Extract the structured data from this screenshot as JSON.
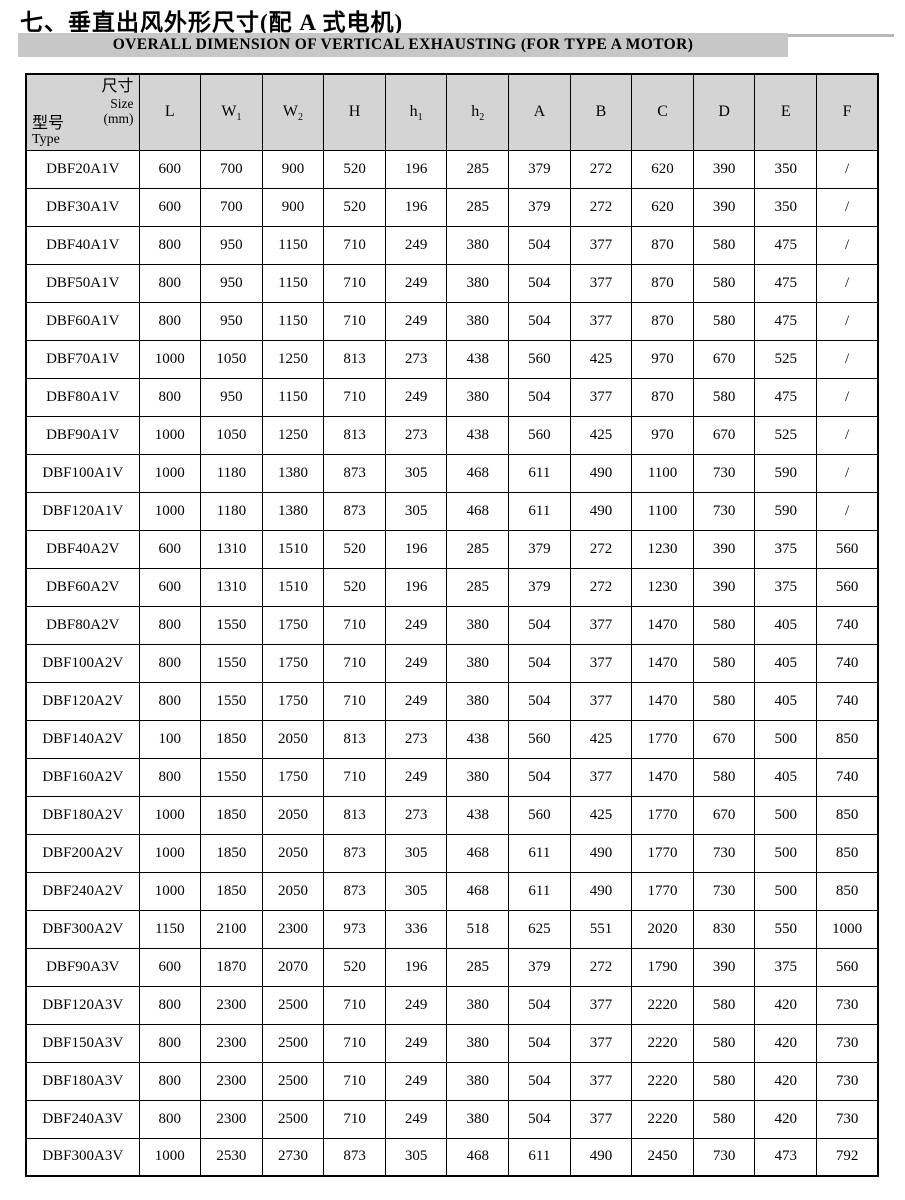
{
  "page": {
    "title": "七、垂直出风外形尺寸(配 A 式电机)",
    "subtitle": "OVERALL DIMENSION OF VERTICAL EXHAUSTING (FOR TYPE A MOTOR)"
  },
  "table": {
    "corner": {
      "size_label": "尺寸",
      "size_en": "Size",
      "size_unit": "(mm)",
      "type_label": "型号",
      "type_en": "Type"
    },
    "columns": [
      {
        "label": "L",
        "sub": ""
      },
      {
        "label": "W",
        "sub": "1"
      },
      {
        "label": "W",
        "sub": "2"
      },
      {
        "label": "H",
        "sub": ""
      },
      {
        "label": "h",
        "sub": "1"
      },
      {
        "label": "h",
        "sub": "2"
      },
      {
        "label": "A",
        "sub": ""
      },
      {
        "label": "B",
        "sub": ""
      },
      {
        "label": "C",
        "sub": ""
      },
      {
        "label": "D",
        "sub": ""
      },
      {
        "label": "E",
        "sub": ""
      },
      {
        "label": "F",
        "sub": ""
      }
    ],
    "rows": [
      {
        "model": "DBF20A1V",
        "values": [
          "600",
          "700",
          "900",
          "520",
          "196",
          "285",
          "379",
          "272",
          "620",
          "390",
          "350",
          "/"
        ]
      },
      {
        "model": "DBF30A1V",
        "values": [
          "600",
          "700",
          "900",
          "520",
          "196",
          "285",
          "379",
          "272",
          "620",
          "390",
          "350",
          "/"
        ]
      },
      {
        "model": "DBF40A1V",
        "values": [
          "800",
          "950",
          "1150",
          "710",
          "249",
          "380",
          "504",
          "377",
          "870",
          "580",
          "475",
          "/"
        ]
      },
      {
        "model": "DBF50A1V",
        "values": [
          "800",
          "950",
          "1150",
          "710",
          "249",
          "380",
          "504",
          "377",
          "870",
          "580",
          "475",
          "/"
        ]
      },
      {
        "model": "DBF60A1V",
        "values": [
          "800",
          "950",
          "1150",
          "710",
          "249",
          "380",
          "504",
          "377",
          "870",
          "580",
          "475",
          "/"
        ]
      },
      {
        "model": "DBF70A1V",
        "values": [
          "1000",
          "1050",
          "1250",
          "813",
          "273",
          "438",
          "560",
          "425",
          "970",
          "670",
          "525",
          "/"
        ]
      },
      {
        "model": "DBF80A1V",
        "values": [
          "800",
          "950",
          "1150",
          "710",
          "249",
          "380",
          "504",
          "377",
          "870",
          "580",
          "475",
          "/"
        ]
      },
      {
        "model": "DBF90A1V",
        "values": [
          "1000",
          "1050",
          "1250",
          "813",
          "273",
          "438",
          "560",
          "425",
          "970",
          "670",
          "525",
          "/"
        ]
      },
      {
        "model": "DBF100A1V",
        "values": [
          "1000",
          "1180",
          "1380",
          "873",
          "305",
          "468",
          "611",
          "490",
          "1100",
          "730",
          "590",
          "/"
        ]
      },
      {
        "model": "DBF120A1V",
        "values": [
          "1000",
          "1180",
          "1380",
          "873",
          "305",
          "468",
          "611",
          "490",
          "1100",
          "730",
          "590",
          "/"
        ]
      },
      {
        "model": "DBF40A2V",
        "values": [
          "600",
          "1310",
          "1510",
          "520",
          "196",
          "285",
          "379",
          "272",
          "1230",
          "390",
          "375",
          "560"
        ]
      },
      {
        "model": "DBF60A2V",
        "values": [
          "600",
          "1310",
          "1510",
          "520",
          "196",
          "285",
          "379",
          "272",
          "1230",
          "390",
          "375",
          "560"
        ]
      },
      {
        "model": "DBF80A2V",
        "values": [
          "800",
          "1550",
          "1750",
          "710",
          "249",
          "380",
          "504",
          "377",
          "1470",
          "580",
          "405",
          "740"
        ]
      },
      {
        "model": "DBF100A2V",
        "values": [
          "800",
          "1550",
          "1750",
          "710",
          "249",
          "380",
          "504",
          "377",
          "1470",
          "580",
          "405",
          "740"
        ]
      },
      {
        "model": "DBF120A2V",
        "values": [
          "800",
          "1550",
          "1750",
          "710",
          "249",
          "380",
          "504",
          "377",
          "1470",
          "580",
          "405",
          "740"
        ]
      },
      {
        "model": "DBF140A2V",
        "values": [
          "100",
          "1850",
          "2050",
          "813",
          "273",
          "438",
          "560",
          "425",
          "1770",
          "670",
          "500",
          "850"
        ]
      },
      {
        "model": "DBF160A2V",
        "values": [
          "800",
          "1550",
          "1750",
          "710",
          "249",
          "380",
          "504",
          "377",
          "1470",
          "580",
          "405",
          "740"
        ]
      },
      {
        "model": "DBF180A2V",
        "values": [
          "1000",
          "1850",
          "2050",
          "813",
          "273",
          "438",
          "560",
          "425",
          "1770",
          "670",
          "500",
          "850"
        ]
      },
      {
        "model": "DBF200A2V",
        "values": [
          "1000",
          "1850",
          "2050",
          "873",
          "305",
          "468",
          "611",
          "490",
          "1770",
          "730",
          "500",
          "850"
        ]
      },
      {
        "model": "DBF240A2V",
        "values": [
          "1000",
          "1850",
          "2050",
          "873",
          "305",
          "468",
          "611",
          "490",
          "1770",
          "730",
          "500",
          "850"
        ]
      },
      {
        "model": "DBF300A2V",
        "values": [
          "1150",
          "2100",
          "2300",
          "973",
          "336",
          "518",
          "625",
          "551",
          "2020",
          "830",
          "550",
          "1000"
        ]
      },
      {
        "model": "DBF90A3V",
        "values": [
          "600",
          "1870",
          "2070",
          "520",
          "196",
          "285",
          "379",
          "272",
          "1790",
          "390",
          "375",
          "560"
        ]
      },
      {
        "model": "DBF120A3V",
        "values": [
          "800",
          "2300",
          "2500",
          "710",
          "249",
          "380",
          "504",
          "377",
          "2220",
          "580",
          "420",
          "730"
        ]
      },
      {
        "model": "DBF150A3V",
        "values": [
          "800",
          "2300",
          "2500",
          "710",
          "249",
          "380",
          "504",
          "377",
          "2220",
          "580",
          "420",
          "730"
        ]
      },
      {
        "model": "DBF180A3V",
        "values": [
          "800",
          "2300",
          "2500",
          "710",
          "249",
          "380",
          "504",
          "377",
          "2220",
          "580",
          "420",
          "730"
        ]
      },
      {
        "model": "DBF240A3V",
        "values": [
          "800",
          "2300",
          "2500",
          "710",
          "249",
          "380",
          "504",
          "377",
          "2220",
          "580",
          "420",
          "730"
        ]
      },
      {
        "model": "DBF300A3V",
        "values": [
          "1000",
          "2530",
          "2730",
          "873",
          "305",
          "468",
          "611",
          "490",
          "2450",
          "730",
          "473",
          "792"
        ]
      }
    ],
    "colors": {
      "header_bg": "#d4d4d4",
      "subtitle_bar_bg": "#c7c7c7",
      "border": "#000000"
    }
  }
}
